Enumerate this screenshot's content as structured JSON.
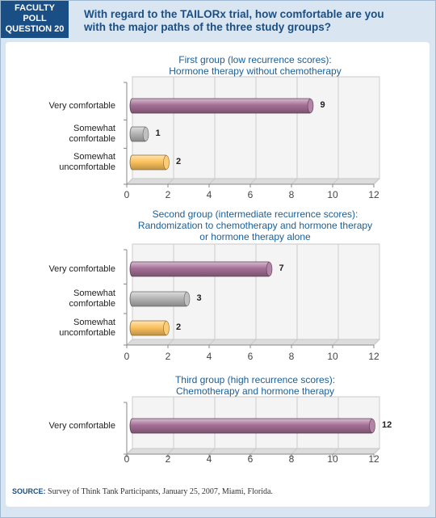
{
  "header": {
    "badge_lines": [
      "FACULTY",
      "POLL",
      "QUESTION 20"
    ],
    "question_lines": [
      "With regard to the TAILORx trial, how comfortable are you",
      "with the major paths of the three study groups?"
    ]
  },
  "source": {
    "label": "SOURCE:",
    "text": "Survey of Think Tank Participants, January 25, 2007, Miami, Florida."
  },
  "colors": {
    "very_comfortable": "#a46e95",
    "somewhat_comfortable": "#b5b5b5",
    "somewhat_uncomfortable": "#fcc25c"
  },
  "chart_data": [
    {
      "type": "bar",
      "orientation": "horizontal",
      "title_lines": [
        "First group (low recurrence scores):",
        "Hormone therapy without chemotherapy"
      ],
      "categories": [
        "Very comfortable",
        "Somewhat comfortable",
        "Somewhat uncomfortable"
      ],
      "category_lines": [
        [
          "Very comfortable"
        ],
        [
          "Somewhat",
          "comfortable"
        ],
        [
          "Somewhat",
          "uncomfortable"
        ]
      ],
      "values": [
        9,
        1,
        2
      ],
      "xlim": [
        0,
        12
      ],
      "xticks": [
        0,
        2,
        4,
        6,
        8,
        10,
        12
      ],
      "grid": true
    },
    {
      "type": "bar",
      "orientation": "horizontal",
      "title_lines": [
        "Second group (intermediate recurrence scores):",
        "Randomization to chemotherapy and hormone therapy",
        "or hormone therapy alone"
      ],
      "categories": [
        "Very comfortable",
        "Somewhat comfortable",
        "Somewhat uncomfortable"
      ],
      "category_lines": [
        [
          "Very comfortable"
        ],
        [
          "Somewhat",
          "comfortable"
        ],
        [
          "Somewhat",
          "uncomfortable"
        ]
      ],
      "values": [
        7,
        3,
        2
      ],
      "xlim": [
        0,
        12
      ],
      "xticks": [
        0,
        2,
        4,
        6,
        8,
        10,
        12
      ],
      "grid": true
    },
    {
      "type": "bar",
      "orientation": "horizontal",
      "title_lines": [
        "Third group (high recurrence scores):",
        "Chemotherapy and hormone therapy"
      ],
      "categories": [
        "Very comfortable"
      ],
      "category_lines": [
        [
          "Very comfortable"
        ]
      ],
      "values": [
        12
      ],
      "xlim": [
        0,
        12
      ],
      "xticks": [
        0,
        2,
        4,
        6,
        8,
        10,
        12
      ],
      "grid": true
    }
  ]
}
